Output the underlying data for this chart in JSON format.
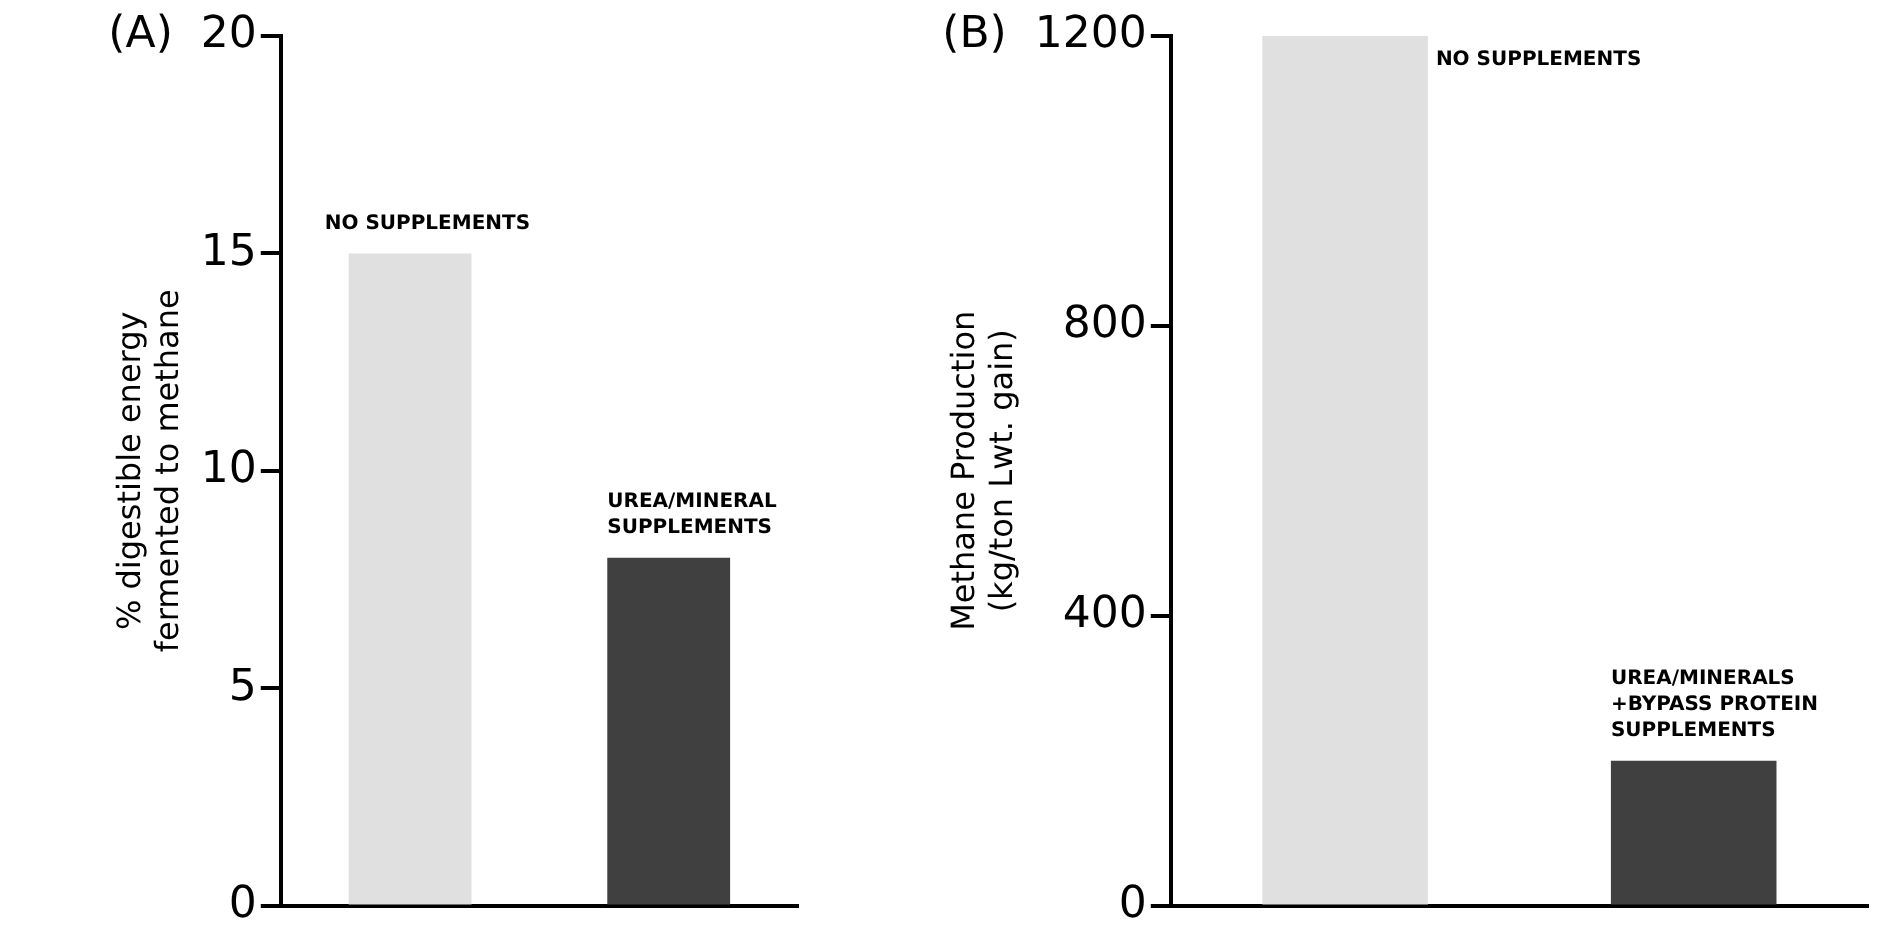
{
  "chart_data": [
    {
      "type": "bar",
      "title": "(A)",
      "ylabel": "% digestible energy\nfermented to methane",
      "categories": [
        null,
        null
      ],
      "values": [
        15,
        8
      ],
      "colors": [
        "#e0e0e0",
        "#404040"
      ],
      "ylim": [
        0,
        20
      ],
      "yticks": [
        0,
        5,
        10,
        15,
        20
      ],
      "grid": false,
      "legend": false,
      "annotations": [
        {
          "text": "NO SUPPLEMENTS",
          "y": 15
        },
        {
          "text": "UREA/MINERAL\nSUPPLEMENTS",
          "y": 8
        }
      ]
    },
    {
      "type": "bar",
      "title": "(B)",
      "ylabel": "Methane Production\n(kg/ton Lwt. gain)",
      "categories": [
        null,
        null
      ],
      "values": [
        1200,
        200
      ],
      "colors": [
        "#e0e0e0",
        "#404040"
      ],
      "ylim": [
        0,
        1200
      ],
      "yticks": [
        0,
        400,
        800,
        1200
      ],
      "grid": false,
      "legend": false,
      "annotations": [
        "NO SUPPLEMENTS",
        {
          "text": "UREA/MINERALS\n+BYPASS PROTEIN\nSUPPLEMENTS",
          "y": 200
        }
      ]
    }
  ]
}
